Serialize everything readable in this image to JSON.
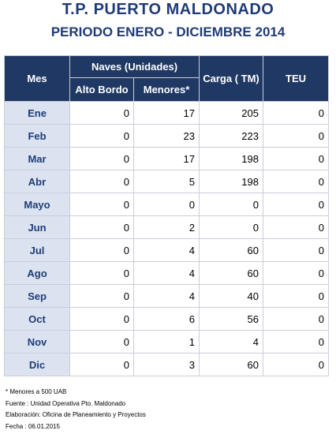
{
  "title": "T.P. PUERTO MALDONADO",
  "subtitle": "PERIODO ENERO - DICIEMBRE 2014",
  "colors": {
    "header_bg": "#1f3864",
    "month_bg": "#dbe3f0",
    "title": "#1f3c78"
  },
  "headers": {
    "mes": "Mes",
    "naves": "Naves (Unidades)",
    "alto_bordo": "Alto Bordo",
    "menores": "Menores*",
    "carga": "Carga ( TM)",
    "teu": "TEU"
  },
  "rows": [
    {
      "mes": "Ene",
      "alto_bordo": "0",
      "menores": "17",
      "carga": "205",
      "teu": "0"
    },
    {
      "mes": "Feb",
      "alto_bordo": "0",
      "menores": "23",
      "carga": "223",
      "teu": "0"
    },
    {
      "mes": "Mar",
      "alto_bordo": "0",
      "menores": "17",
      "carga": "198",
      "teu": "0"
    },
    {
      "mes": "Abr",
      "alto_bordo": "0",
      "menores": "5",
      "carga": "198",
      "teu": "0"
    },
    {
      "mes": "Mayo",
      "alto_bordo": "0",
      "menores": "0",
      "carga": "0",
      "teu": "0"
    },
    {
      "mes": "Jun",
      "alto_bordo": "0",
      "menores": "2",
      "carga": "0",
      "teu": "0"
    },
    {
      "mes": "Jul",
      "alto_bordo": "0",
      "menores": "4",
      "carga": "60",
      "teu": "0"
    },
    {
      "mes": "Ago",
      "alto_bordo": "0",
      "menores": "4",
      "carga": "60",
      "teu": "0"
    },
    {
      "mes": "Sep",
      "alto_bordo": "0",
      "menores": "4",
      "carga": "40",
      "teu": "0"
    },
    {
      "mes": "Oct",
      "alto_bordo": "0",
      "menores": "6",
      "carga": "56",
      "teu": "0"
    },
    {
      "mes": "Nov",
      "alto_bordo": "0",
      "menores": "1",
      "carga": "4",
      "teu": "0"
    },
    {
      "mes": "Dic",
      "alto_bordo": "0",
      "menores": "3",
      "carga": "60",
      "teu": "0"
    }
  ],
  "notes": [
    "* Menores a 500 UAB",
    "Fuente : Unidad Operativa Pto. Maldonado",
    "Elaboración: Oficina de Planeamiento y Proyectos",
    "Fecha : 06.01.2015"
  ]
}
